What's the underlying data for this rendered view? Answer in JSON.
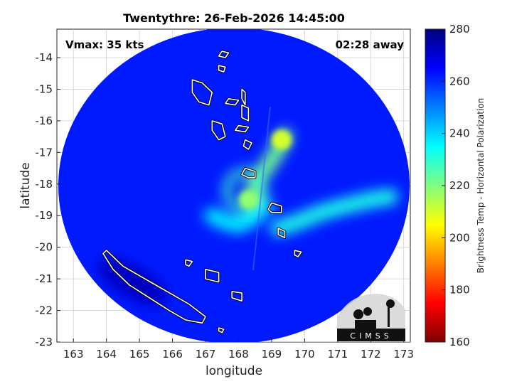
{
  "title": "Twentythre: 26-Feb-2026 14:45:00",
  "vmax_label": "Vmax: 35 kts",
  "time_away_label": "02:28 away",
  "map": {
    "xlabel": "longitude",
    "ylabel": "latitude",
    "xlim": [
      162.5,
      173.2
    ],
    "ylim": [
      -23,
      -13.1
    ],
    "x_ticks": [
      163,
      164,
      165,
      166,
      167,
      168,
      169,
      170,
      171,
      172,
      173
    ],
    "y_ticks": [
      -14,
      -15,
      -16,
      -17,
      -18,
      -19,
      -20,
      -21,
      -22,
      -23
    ],
    "grid": true,
    "swath_center": [
      167.9,
      -18.3
    ],
    "center_lon": 168.2,
    "center_lat": -18.2,
    "background_tb": 262,
    "features": [
      {
        "type": "rainband",
        "lon": [
          168.4,
          168.6,
          168.9,
          169.2,
          169.4
        ],
        "lat": [
          -18.3,
          -17.8,
          -17.4,
          -16.9,
          -16.5
        ],
        "tb": 222
      },
      {
        "type": "rainband",
        "lon": [
          169.2,
          169.8,
          170.5,
          171.2,
          172.0,
          172.6
        ],
        "lat": [
          -19.4,
          -19.2,
          -18.9,
          -18.7,
          -18.5,
          -18.4
        ],
        "tb": 232
      },
      {
        "type": "rainband",
        "lon": [
          167.2,
          167.6,
          168.0,
          168.4,
          168.8
        ],
        "lat": [
          -19.0,
          -19.2,
          -19.3,
          -19.1,
          -18.7
        ],
        "tb": 236
      },
      {
        "type": "core",
        "lon": 168.3,
        "lat": -18.5,
        "tb": 218
      },
      {
        "type": "core",
        "lon": 169.3,
        "lat": -16.6,
        "tb": 210
      },
      {
        "type": "cold_spot",
        "lon": 164.8,
        "lat": -21.1,
        "tb": 272
      }
    ],
    "islands": [
      {
        "name": "New Caledonia",
        "lon": [
          164.0,
          164.5,
          165.0,
          165.5,
          166.0,
          166.5,
          167.0,
          166.9,
          166.4,
          165.9,
          165.3,
          164.7,
          164.2,
          163.9
        ],
        "lat": [
          -20.1,
          -20.6,
          -20.9,
          -21.2,
          -21.5,
          -21.8,
          -22.2,
          -22.4,
          -22.3,
          -22.0,
          -21.6,
          -21.2,
          -20.7,
          -20.2
        ]
      },
      {
        "name": "Espiritu Santo",
        "lon": [
          166.6,
          166.9,
          167.2,
          167.1,
          166.8,
          166.6
        ],
        "lat": [
          -14.7,
          -14.8,
          -15.1,
          -15.5,
          -15.4,
          -15.1
        ]
      },
      {
        "name": "Malakula",
        "lon": [
          167.2,
          167.5,
          167.6,
          167.4,
          167.2
        ],
        "lat": [
          -16.0,
          -16.1,
          -16.5,
          -16.6,
          -16.3
        ]
      },
      {
        "name": "Efate",
        "lon": [
          168.2,
          168.5,
          168.5,
          168.3,
          168.1
        ],
        "lat": [
          -17.5,
          -17.6,
          -17.8,
          -17.8,
          -17.7
        ]
      },
      {
        "name": "Erromango",
        "lon": [
          169.0,
          169.3,
          169.3,
          169.0,
          168.9
        ],
        "lat": [
          -18.6,
          -18.7,
          -18.9,
          -18.9,
          -18.8
        ]
      },
      {
        "name": "Tanna",
        "lon": [
          169.2,
          169.4,
          169.4,
          169.2
        ],
        "lat": [
          -19.4,
          -19.5,
          -19.7,
          -19.6
        ]
      },
      {
        "name": "Aneityum",
        "lon": [
          169.7,
          169.9,
          169.8,
          169.7
        ],
        "lat": [
          -20.1,
          -20.15,
          -20.3,
          -20.25
        ]
      },
      {
        "name": "Maewo",
        "lon": [
          168.1,
          168.2,
          168.2,
          168.1
        ],
        "lat": [
          -15.0,
          -15.1,
          -15.5,
          -15.3
        ]
      },
      {
        "name": "Pentecost",
        "lon": [
          168.1,
          168.3,
          168.3,
          168.1
        ],
        "lat": [
          -15.5,
          -15.6,
          -16.0,
          -15.9
        ]
      },
      {
        "name": "Ambae",
        "lon": [
          167.7,
          168.0,
          167.9,
          167.6
        ],
        "lat": [
          -15.3,
          -15.35,
          -15.5,
          -15.45
        ]
      },
      {
        "name": "Ambrym",
        "lon": [
          168.0,
          168.3,
          168.2,
          167.9
        ],
        "lat": [
          -16.15,
          -16.2,
          -16.35,
          -16.3
        ]
      },
      {
        "name": "Epi",
        "lon": [
          168.2,
          168.4,
          168.3,
          168.15
        ],
        "lat": [
          -16.6,
          -16.7,
          -16.9,
          -16.8
        ]
      },
      {
        "name": "Banks",
        "lon": [
          167.5,
          167.7,
          167.6,
          167.4
        ],
        "lat": [
          -13.8,
          -13.85,
          -14.0,
          -13.95
        ]
      },
      {
        "name": "Vanua Lava",
        "lon": [
          167.4,
          167.6,
          167.55,
          167.4
        ],
        "lat": [
          -14.25,
          -14.3,
          -14.45,
          -14.4
        ]
      },
      {
        "name": "Lifou",
        "lon": [
          167.0,
          167.4,
          167.4,
          167.0
        ],
        "lat": [
          -20.7,
          -20.8,
          -21.1,
          -21.0
        ]
      },
      {
        "name": "Mare",
        "lon": [
          167.8,
          168.1,
          168.1,
          167.8
        ],
        "lat": [
          -21.4,
          -21.45,
          -21.7,
          -21.6
        ]
      },
      {
        "name": "Ouvea",
        "lon": [
          166.4,
          166.6,
          166.5,
          166.4
        ],
        "lat": [
          -20.4,
          -20.45,
          -20.6,
          -20.55
        ]
      },
      {
        "name": "Isle of Pines",
        "lon": [
          167.4,
          167.55,
          167.5,
          167.4
        ],
        "lat": [
          -22.55,
          -22.6,
          -22.7,
          -22.65
        ]
      }
    ]
  },
  "colorbar": {
    "label": "Brightness Temp - Horizontal Polarization",
    "min": 160,
    "max": 280,
    "ticks": [
      160,
      180,
      200,
      220,
      240,
      260,
      280
    ],
    "colormap": [
      "#7f0000",
      "#ff0000",
      "#ff8000",
      "#ffff00",
      "#80ff80",
      "#00ffff",
      "#0080ff",
      "#0000ff",
      "#00007f"
    ]
  },
  "logo": {
    "text": "CIMSS",
    "icon": "cimss-logo-icon"
  }
}
